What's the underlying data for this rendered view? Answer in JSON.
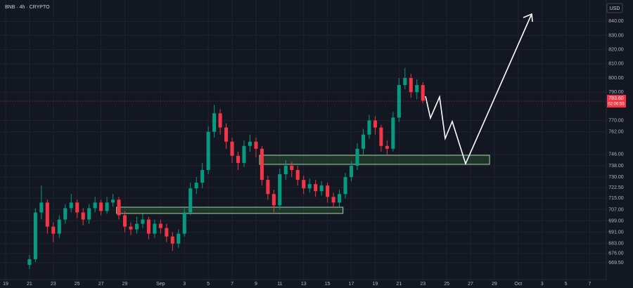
{
  "chart_data": {
    "type": "candlestick",
    "title": "BNB · 4h · CRYPTO",
    "currency": "USD",
    "up_color": "#089981",
    "down_color": "#f23645",
    "grid": true,
    "x": [
      2,
      2.5,
      3,
      3.5,
      4,
      4.5,
      5,
      5.5,
      6,
      6.5,
      7,
      7.5,
      8,
      8.5,
      9,
      9.5,
      10,
      10.5,
      11,
      11.5,
      12,
      12.5,
      13,
      13.5,
      14,
      14.5,
      15,
      15.5,
      16,
      16.5,
      17,
      17.5,
      18,
      18.5,
      19,
      19.5,
      20,
      20.5,
      21,
      21.5,
      22,
      22.5,
      23,
      23.5,
      24,
      24.5,
      25,
      25.5,
      26,
      26.5,
      27,
      27.5,
      28,
      28.5,
      29,
      29.5,
      30,
      30.5,
      31,
      31.5,
      32,
      32.5,
      33,
      33.5,
      34,
      34.5,
      35
    ],
    "open": [
      668,
      672,
      705,
      712,
      695,
      690,
      700,
      708,
      712,
      705,
      700,
      708,
      712,
      706,
      712,
      714,
      703,
      695,
      693,
      697,
      700,
      690,
      697,
      694,
      688,
      683,
      690,
      705,
      722,
      726,
      735,
      762,
      775,
      765,
      755,
      745,
      740,
      752,
      755,
      750,
      728,
      718,
      710,
      732,
      738,
      735,
      728,
      722,
      725,
      720,
      724,
      716,
      712,
      718,
      730,
      738,
      750,
      760,
      770,
      765,
      752,
      750,
      772,
      795,
      800,
      790,
      795
    ],
    "high": [
      675,
      708,
      724,
      714,
      698,
      703,
      711,
      718,
      714,
      708,
      711,
      716,
      714,
      716,
      718,
      716,
      706,
      698,
      702,
      704,
      702,
      700,
      700,
      697,
      691,
      693,
      708,
      726,
      730,
      740,
      766,
      781,
      778,
      768,
      758,
      748,
      756,
      760,
      758,
      752,
      731,
      721,
      736,
      742,
      741,
      738,
      731,
      729,
      728,
      727,
      726,
      719,
      721,
      733,
      741,
      754,
      764,
      774,
      773,
      767,
      756,
      776,
      800,
      807,
      803,
      799,
      797
    ],
    "low": [
      665,
      670,
      700,
      690,
      684,
      687,
      697,
      705,
      701,
      696,
      697,
      705,
      703,
      704,
      709,
      700,
      691,
      689,
      690,
      694,
      686,
      687,
      690,
      684,
      678,
      680,
      688,
      703,
      718,
      722,
      732,
      758,
      760,
      750,
      740,
      735,
      737,
      748,
      744,
      724,
      714,
      705,
      707,
      728,
      730,
      724,
      718,
      719,
      716,
      717,
      712,
      708,
      709,
      715,
      727,
      735,
      746,
      757,
      760,
      748,
      745,
      748,
      769,
      792,
      786,
      785,
      782
    ],
    "close": [
      672,
      705,
      712,
      695,
      690,
      700,
      708,
      712,
      705,
      700,
      708,
      712,
      706,
      712,
      714,
      703,
      695,
      693,
      697,
      700,
      690,
      697,
      694,
      688,
      683,
      690,
      705,
      722,
      726,
      735,
      762,
      775,
      765,
      755,
      745,
      740,
      752,
      755,
      750,
      728,
      718,
      710,
      732,
      738,
      735,
      728,
      722,
      725,
      720,
      724,
      716,
      712,
      718,
      730,
      738,
      750,
      760,
      770,
      765,
      752,
      750,
      772,
      795,
      800,
      790,
      795,
      784
    ],
    "zones": [
      {
        "x": [
          9.3,
          28.3
        ],
        "y": [
          704.3,
          708.7
        ]
      },
      {
        "x": [
          21.3,
          40.6
        ],
        "y": [
          739,
          745.4
        ]
      }
    ],
    "last_price": {
      "value": 783.6,
      "label": "783.60"
    },
    "countdown": "02:06:55",
    "xlim": [
      0,
      50.15
    ],
    "xticks": [
      {
        "value": 0,
        "label": "19"
      },
      {
        "value": 2,
        "label": "21"
      },
      {
        "value": 4,
        "label": "23"
      },
      {
        "value": 6,
        "label": "25"
      },
      {
        "value": 8,
        "label": "27"
      },
      {
        "value": 10,
        "label": "29"
      },
      {
        "value": 13,
        "label": "Sep"
      },
      {
        "value": 15,
        "label": "3"
      },
      {
        "value": 17,
        "label": "5"
      },
      {
        "value": 19,
        "label": "7"
      },
      {
        "value": 21,
        "label": "9"
      },
      {
        "value": 23,
        "label": "11"
      },
      {
        "value": 25,
        "label": "13"
      },
      {
        "value": 27,
        "label": "15"
      },
      {
        "value": 29,
        "label": "17"
      },
      {
        "value": 31,
        "label": "19"
      },
      {
        "value": 33,
        "label": "21"
      },
      {
        "value": 35,
        "label": "23"
      },
      {
        "value": 37,
        "label": "25"
      },
      {
        "value": 39,
        "label": "27"
      },
      {
        "value": 41,
        "label": "29"
      },
      {
        "value": 43,
        "label": "Oct"
      },
      {
        "value": 45,
        "label": "3"
      },
      {
        "value": 47,
        "label": "5"
      },
      {
        "value": 49,
        "label": "7"
      }
    ],
    "ylim": [
      656.6,
      851.1
    ],
    "yticks": [
      {
        "value": 669.5,
        "label": "669.50"
      },
      {
        "value": 676,
        "label": "676.00"
      },
      {
        "value": 683,
        "label": "683.00"
      },
      {
        "value": 691,
        "label": "691.00"
      },
      {
        "value": 699,
        "label": "699.00"
      },
      {
        "value": 707,
        "label": "707.00"
      },
      {
        "value": 715,
        "label": "715.00"
      },
      {
        "value": 722.5,
        "label": "722.50"
      },
      {
        "value": 730,
        "label": "730.00"
      },
      {
        "value": 738,
        "label": "738.00"
      },
      {
        "value": 746,
        "label": "746.00"
      },
      {
        "value": 762,
        "label": "762.00"
      },
      {
        "value": 770,
        "label": "770.00"
      },
      {
        "value": 790,
        "label": "790.00"
      },
      {
        "value": 800,
        "label": "800.00"
      },
      {
        "value": 810,
        "label": "810.00"
      },
      {
        "value": 820,
        "label": "820.00"
      },
      {
        "value": 830,
        "label": "830.00"
      },
      {
        "value": 840,
        "label": "840.00"
      }
    ]
  }
}
